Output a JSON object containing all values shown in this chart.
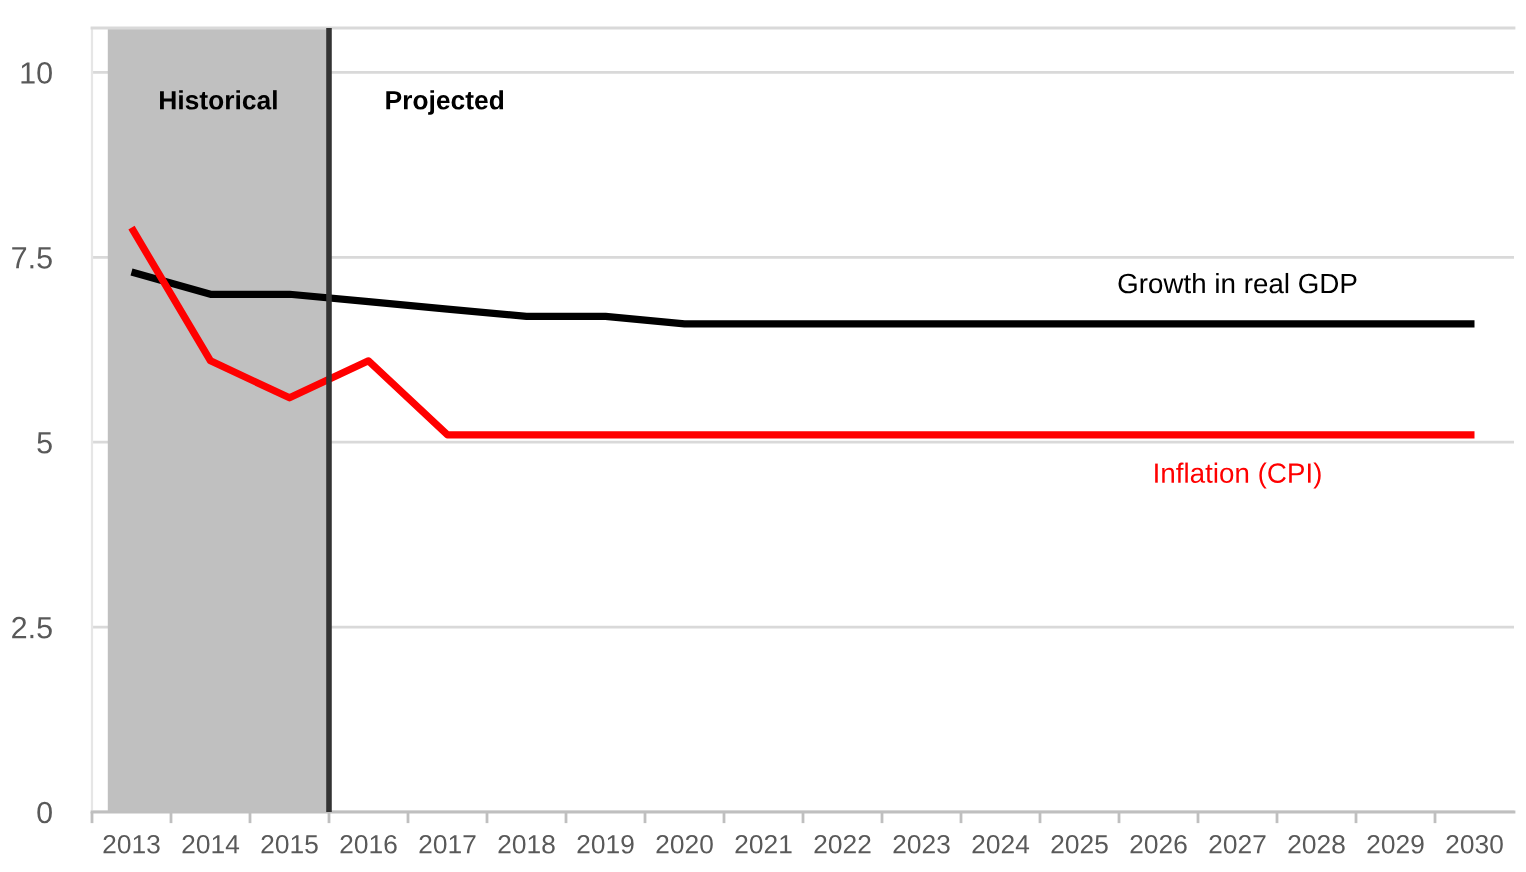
{
  "chart_data": {
    "type": "line",
    "x": [
      2013,
      2014,
      2015,
      2016,
      2017,
      2018,
      2019,
      2020,
      2021,
      2022,
      2023,
      2024,
      2025,
      2026,
      2027,
      2028,
      2029,
      2030
    ],
    "series": [
      {
        "name": "Growth in real GDP",
        "color": "#000000",
        "values": [
          7.3,
          7.0,
          7.0,
          6.9,
          6.8,
          6.7,
          6.7,
          6.6,
          6.6,
          6.6,
          6.6,
          6.6,
          6.6,
          6.6,
          6.6,
          6.6,
          6.6,
          6.6
        ]
      },
      {
        "name": "Inflation (CPI)",
        "color": "#ff0000",
        "values": [
          7.9,
          6.1,
          5.6,
          6.1,
          5.1,
          5.1,
          5.1,
          5.1,
          5.1,
          5.1,
          5.1,
          5.1,
          5.1,
          5.1,
          5.1,
          5.1,
          5.1,
          5.1
        ]
      }
    ],
    "xlim": [
      2012.5,
      2030.5
    ],
    "ylim": [
      0,
      10.6
    ],
    "xticks": [
      {
        "value": 2012.5,
        "label": null
      },
      2013,
      {
        "value": 2013.5,
        "label": null
      },
      2014,
      {
        "value": 2014.5,
        "label": null
      },
      2015,
      {
        "value": 2015.5,
        "label": null
      },
      2016,
      {
        "value": 2016.5,
        "label": null
      },
      2017,
      {
        "value": 2017.5,
        "label": null
      },
      2018,
      {
        "value": 2018.5,
        "label": null
      },
      2019,
      {
        "value": 2019.5,
        "label": null
      },
      2020,
      {
        "value": 2020.5,
        "label": null
      },
      2021,
      {
        "value": 2021.5,
        "label": null
      },
      2022,
      {
        "value": 2022.5,
        "label": null
      },
      2023,
      {
        "value": 2023.5,
        "label": null
      },
      2024,
      {
        "value": 2024.5,
        "label": null
      },
      2025,
      {
        "value": 2025.5,
        "label": null
      },
      2026,
      {
        "value": 2026.5,
        "label": null
      },
      2027,
      {
        "value": 2027.5,
        "label": null
      },
      2028,
      {
        "value": 2028.5,
        "label": null
      },
      2029,
      {
        "value": 2029.5,
        "label": null
      },
      2030
    ],
    "yticks": [
      0,
      2.5,
      5,
      7.5,
      10
    ],
    "grid": "y",
    "line_style": "solid",
    "bands": [
      {
        "axis": "x",
        "from": 2012.7,
        "to": 2015.5,
        "label": "Historical",
        "color": "#c0c0c0"
      }
    ],
    "ref_lines": [
      {
        "axis": "x",
        "value": 2015.5,
        "label": "Projected",
        "color": "#333333",
        "line_style": "solid"
      }
    ]
  }
}
